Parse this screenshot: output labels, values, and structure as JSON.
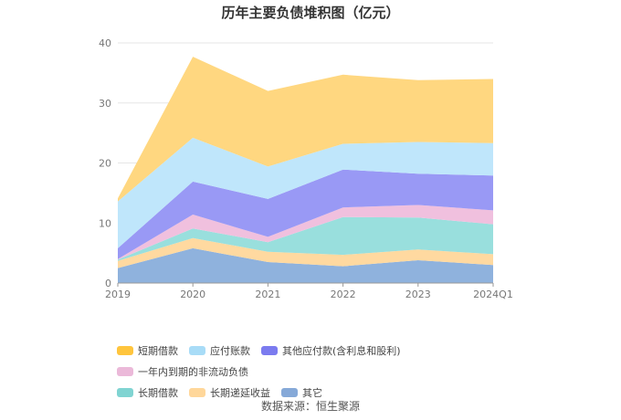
{
  "chart_data": {
    "type": "area",
    "stacked": true,
    "title": "历年主要负债堆积图（亿元）",
    "categories": [
      "2019",
      "2020",
      "2021",
      "2022",
      "2023",
      "2024Q1"
    ],
    "ylim": [
      0,
      40
    ],
    "yticks": [
      0,
      10,
      20,
      30,
      40
    ],
    "grid": true,
    "legend_position": "bottom",
    "series": [
      {
        "name": "其它",
        "color": "#8fb2dd",
        "values": [
          2.5,
          5.8,
          3.5,
          2.8,
          3.8,
          3.0
        ]
      },
      {
        "name": "长期递延收益",
        "color": "#ffd9a0",
        "values": [
          1.2,
          1.7,
          1.7,
          1.9,
          1.8,
          1.8
        ]
      },
      {
        "name": "长期借款",
        "color": "#99dfdd",
        "values": [
          0.2,
          1.6,
          1.6,
          6.3,
          5.3,
          5.0
        ]
      },
      {
        "name": "一年内到期的非流动负债",
        "color": "#f0c0de",
        "values": [
          0.1,
          2.3,
          0.9,
          1.6,
          2.1,
          2.3
        ]
      },
      {
        "name": "其他应付款(含利息和股利)",
        "color": "#9999f5",
        "values": [
          1.8,
          5.5,
          6.3,
          6.3,
          5.2,
          5.8
        ]
      },
      {
        "name": "应付账款",
        "color": "#bfe6fb",
        "values": [
          7.8,
          7.3,
          5.4,
          4.3,
          5.3,
          5.4
        ]
      },
      {
        "name": "短期借款",
        "color": "#ffd780",
        "values": [
          0.5,
          13.5,
          12.6,
          11.5,
          10.3,
          10.7
        ]
      }
    ]
  },
  "legend": {
    "row1": [
      {
        "label": "短期借款",
        "color": "#ffc53d"
      },
      {
        "label": "应付账款",
        "color": "#a8dcf7"
      },
      {
        "label": "其他应付款(含利息和股利)",
        "color": "#7b7bef"
      },
      {
        "label": "一年内到期的非流动负债",
        "color": "#ebb9d9"
      }
    ],
    "row2": [
      {
        "label": "长期借款",
        "color": "#80d4d2"
      },
      {
        "label": "长期递延收益",
        "color": "#ffd79a"
      },
      {
        "label": "其它",
        "color": "#86a9d8"
      }
    ]
  },
  "source_text": "数据来源：恒生聚源"
}
